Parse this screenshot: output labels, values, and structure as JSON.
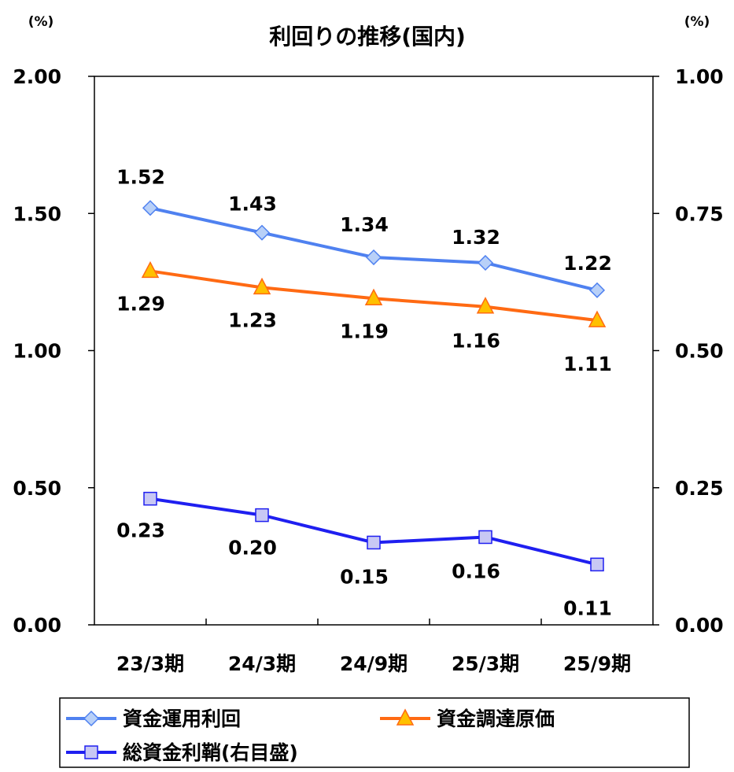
{
  "chart_data": {
    "type": "line",
    "title": "利回りの推移(国内)",
    "left_axis_unit": "(%)",
    "right_axis_unit": "(%)",
    "categories": [
      "23/3期",
      "24/3期",
      "24/9期",
      "25/3期",
      "25/9期"
    ],
    "left_axis": {
      "ylim": [
        0,
        2.0
      ],
      "ticks": [
        "0.00",
        "0.50",
        "1.00",
        "1.50",
        "2.00"
      ]
    },
    "right_axis": {
      "ylim": [
        0,
        1.0
      ],
      "ticks": [
        "0.00",
        "0.25",
        "0.50",
        "0.75",
        "1.00"
      ]
    },
    "grid": false,
    "legend_position": "bottom",
    "series": [
      {
        "name": "資金運用利回",
        "axis": "left",
        "marker": "diamond",
        "color": "#4F81F0",
        "marker_fill": "#B8D0F8",
        "values": [
          1.52,
          1.43,
          1.34,
          1.32,
          1.22
        ],
        "labels": [
          "1.52",
          "1.43",
          "1.34",
          "1.32",
          "1.22"
        ],
        "label_position": "above"
      },
      {
        "name": "資金調達原価",
        "axis": "left",
        "marker": "triangle",
        "color": "#FF6A13",
        "marker_fill": "#FFC000",
        "values": [
          1.29,
          1.23,
          1.19,
          1.16,
          1.11
        ],
        "labels": [
          "1.29",
          "1.23",
          "1.19",
          "1.16",
          "1.11"
        ],
        "label_position": "below"
      },
      {
        "name": "総資金利鞘(右目盛)",
        "axis": "right",
        "marker": "square",
        "color": "#1F1FF0",
        "marker_fill": "#C8C8F4",
        "values": [
          0.23,
          0.2,
          0.15,
          0.16,
          0.11
        ],
        "labels": [
          "0.23",
          "0.20",
          "0.15",
          "0.16",
          "0.11"
        ],
        "label_position": "below"
      }
    ]
  }
}
